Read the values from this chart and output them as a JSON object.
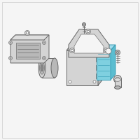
{
  "background_color": "#f5f5f5",
  "border_color": "#cccccc",
  "part_light": "#d4d4d4",
  "part_mid": "#b8b8b8",
  "part_dark": "#888888",
  "edge_dark": "#666666",
  "blue_fill": "#7fd0e0",
  "blue_mid": "#5bbdd0",
  "blue_edge": "#3a9db5",
  "white": "#ffffff",
  "lw": 0.7,
  "tlw": 0.45
}
